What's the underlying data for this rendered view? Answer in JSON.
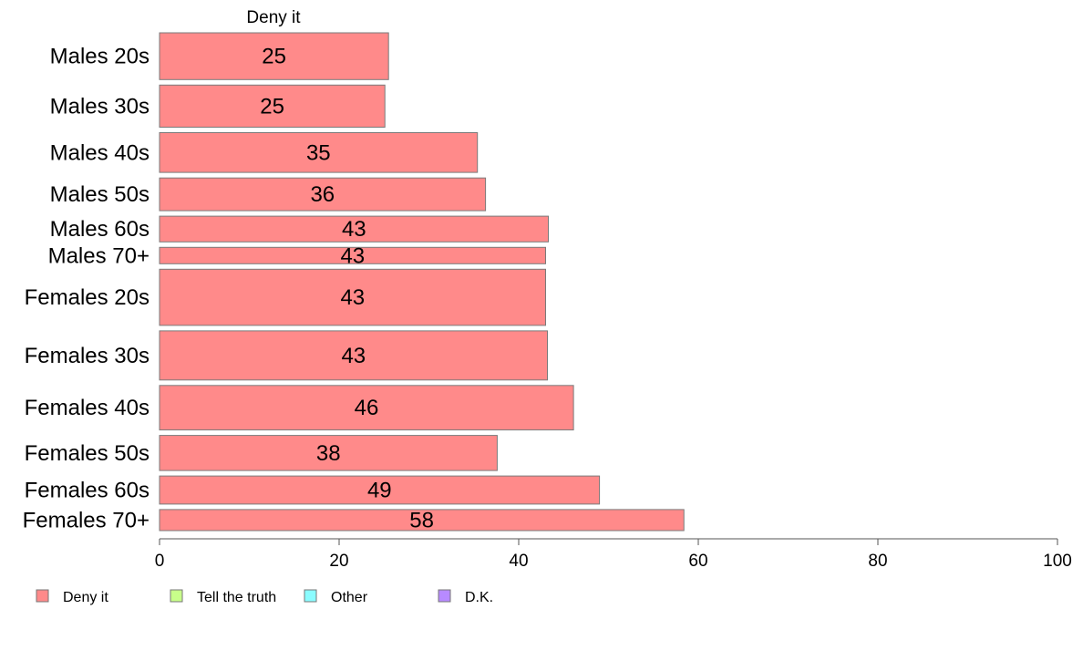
{
  "chart_data": {
    "type": "bar",
    "orientation": "horizontal",
    "column_title": "Deny it",
    "categories": [
      "Males 20s",
      "Males 30s",
      "Males 40s",
      "Males 50s",
      "Males 60s",
      "Males 70+",
      "Females 20s",
      "Females 30s",
      "Females 40s",
      "Females 50s",
      "Females 60s",
      "Females 70+"
    ],
    "series": [
      {
        "name": "Deny it",
        "values": [
          25,
          25,
          35,
          36,
          43,
          43,
          43,
          43,
          46,
          38,
          49,
          58
        ],
        "exact": [
          25.5,
          25.1,
          35.4,
          36.3,
          43.3,
          43.0,
          43.0,
          43.2,
          46.1,
          37.6,
          49.0,
          58.4
        ]
      }
    ],
    "group_weights": [
      1.0,
      0.9,
      0.85,
      0.7,
      0.55,
      0.35,
      1.2,
      1.05,
      0.95,
      0.75,
      0.6,
      0.45
    ],
    "xlim": [
      0,
      100
    ],
    "xticks": [
      0,
      20,
      40,
      60,
      80,
      100
    ],
    "grid": false,
    "legend": {
      "placement": "bottom",
      "items": [
        {
          "label": "Deny it",
          "color": "#ff8a8a"
        },
        {
          "label": "Tell the truth",
          "color": "#c8ff8a"
        },
        {
          "label": "Other",
          "color": "#8afcff"
        },
        {
          "label": "D.K.",
          "color": "#b78aff"
        }
      ]
    },
    "colors": {
      "bar": "#ff8a8a",
      "bar_stroke": "#7a7a7a",
      "axis": "#555555"
    }
  }
}
